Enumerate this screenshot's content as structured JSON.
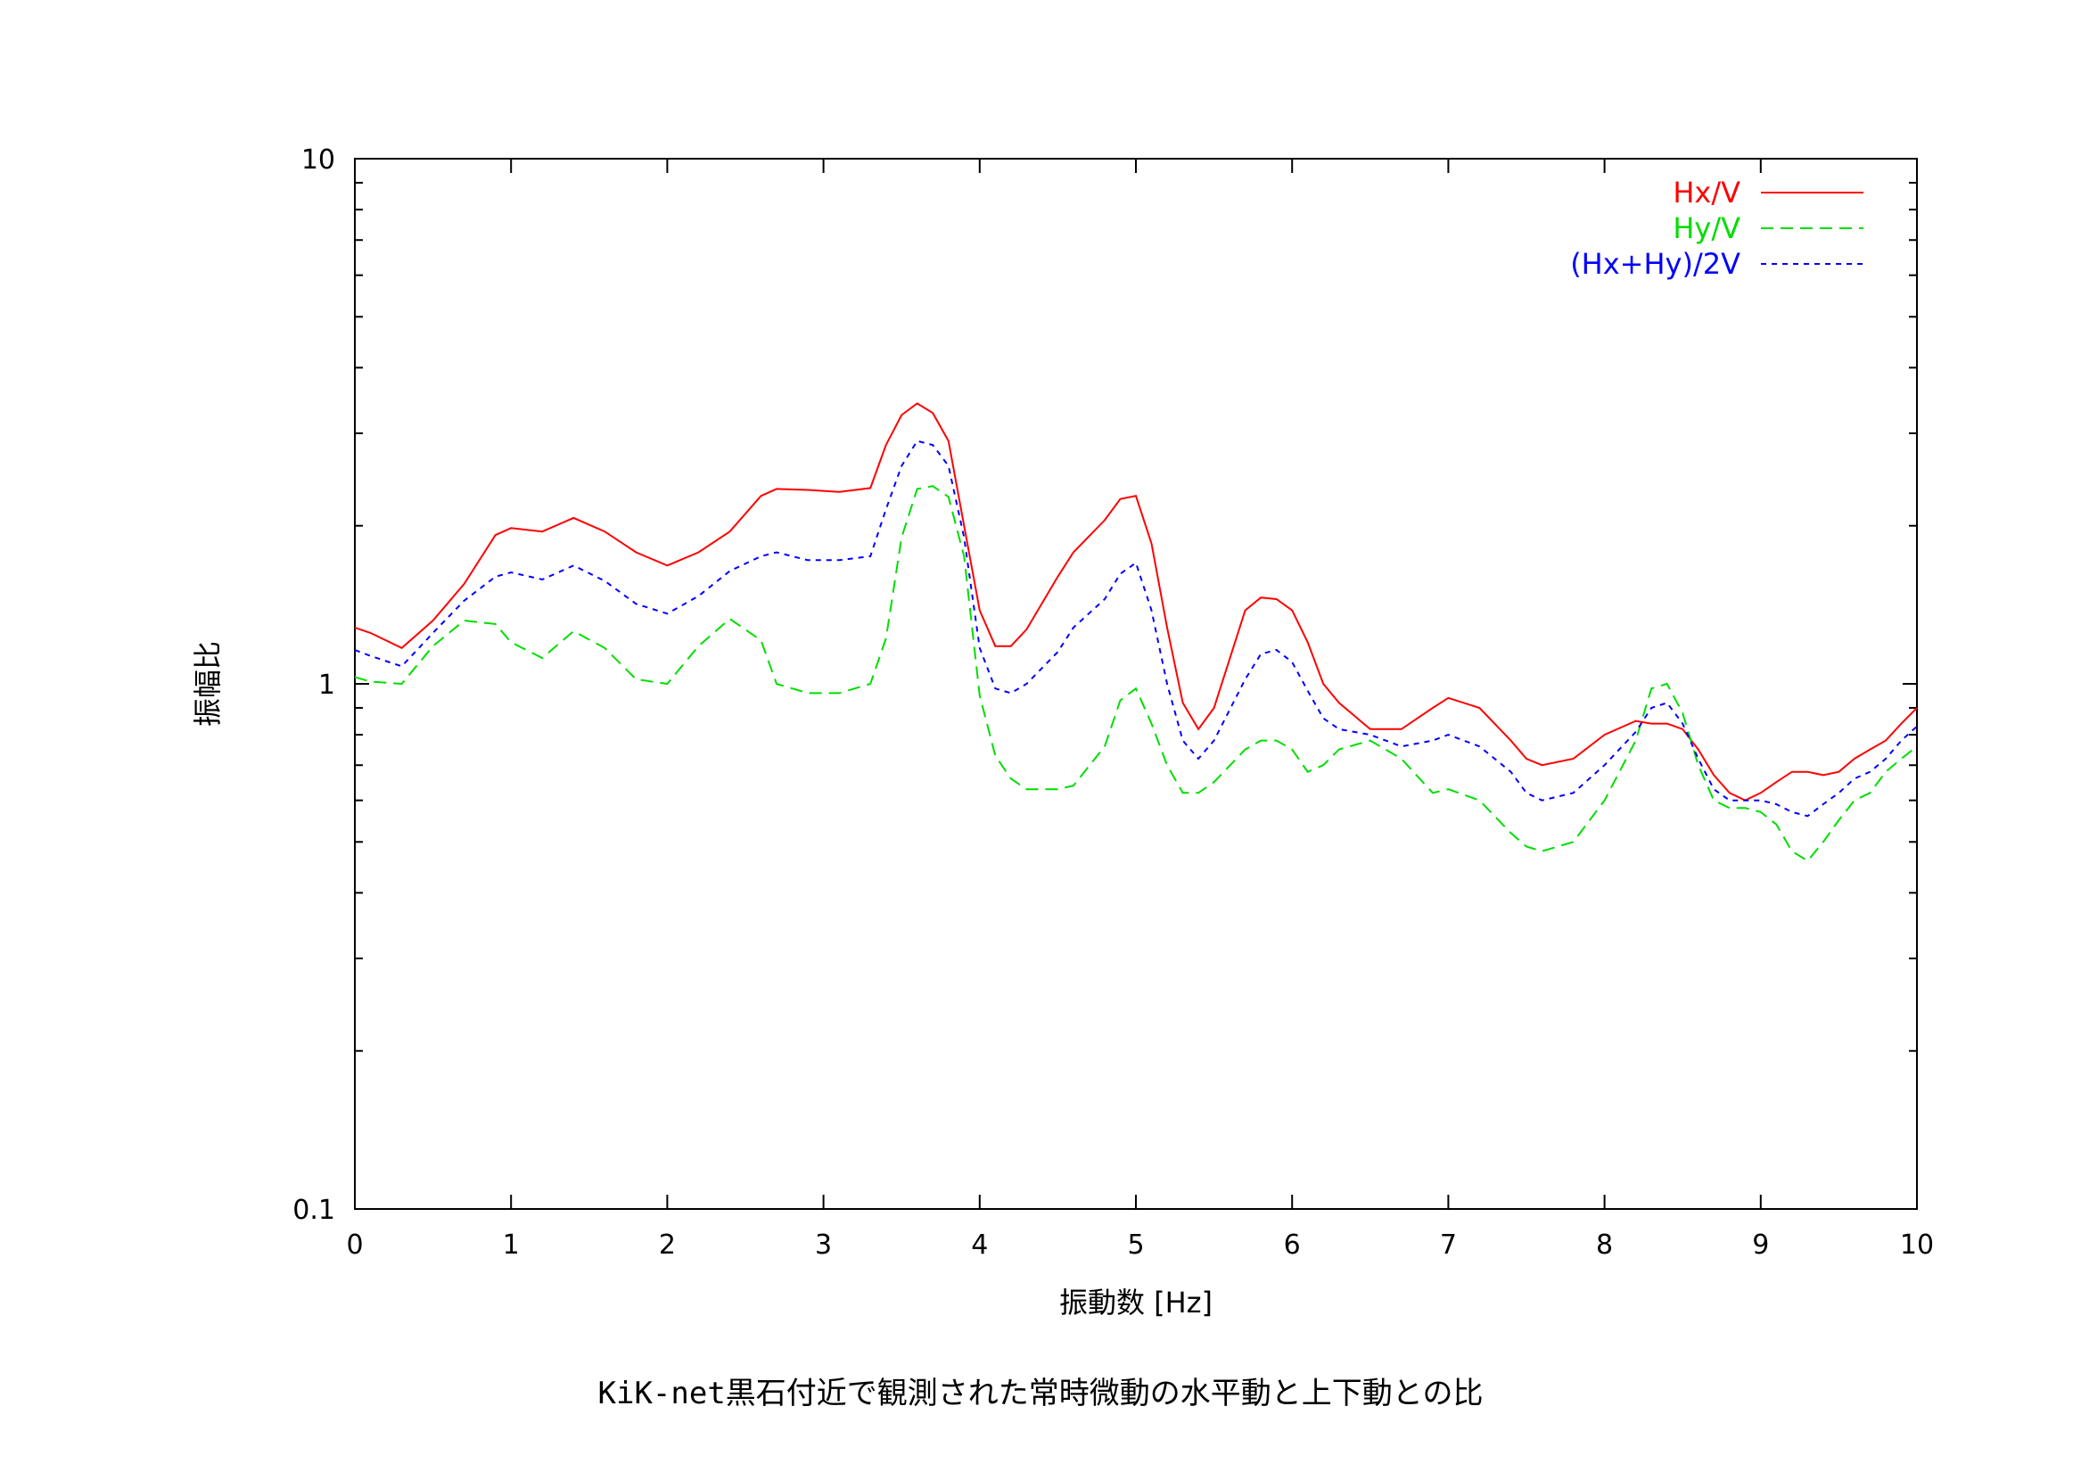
{
  "caption": "KiK-net黒石付近で観測された常時微動の水平動と上下動との比",
  "chart_data": {
    "type": "line",
    "xlabel": "振動数 [Hz]",
    "ylabel": "振幅比",
    "xlim": [
      0,
      10
    ],
    "ylim": [
      0.1,
      10
    ],
    "yscale": "log",
    "x_ticks": [
      0,
      1,
      2,
      3,
      4,
      5,
      6,
      7,
      8,
      9,
      10
    ],
    "x_tick_labels": [
      "0",
      "1",
      "2",
      "3",
      "4",
      "5",
      "6",
      "7",
      "8",
      "9",
      "10"
    ],
    "y_ticks": [
      0.1,
      1,
      10
    ],
    "y_tick_labels": [
      "0.1",
      "1",
      "10"
    ],
    "legend_position": "top-right",
    "x": [
      0,
      0.1,
      0.3,
      0.5,
      0.7,
      0.9,
      1.0,
      1.2,
      1.4,
      1.6,
      1.8,
      2.0,
      2.2,
      2.4,
      2.6,
      2.7,
      2.9,
      3.1,
      3.3,
      3.4,
      3.5,
      3.6,
      3.7,
      3.8,
      3.9,
      4.0,
      4.1,
      4.2,
      4.3,
      4.5,
      4.6,
      4.8,
      4.9,
      5.0,
      5.1,
      5.2,
      5.3,
      5.4,
      5.5,
      5.7,
      5.8,
      5.9,
      6.0,
      6.1,
      6.2,
      6.3,
      6.5,
      6.7,
      6.9,
      7.0,
      7.2,
      7.4,
      7.5,
      7.6,
      7.8,
      8.0,
      8.2,
      8.3,
      8.4,
      8.5,
      8.6,
      8.7,
      8.8,
      8.9,
      9.0,
      9.1,
      9.2,
      9.3,
      9.4,
      9.5,
      9.6,
      9.7,
      9.8,
      9.9,
      10.0
    ],
    "series": [
      {
        "name": "Hx/V",
        "color": "#ff0000",
        "dash": "solid",
        "values": [
          1.28,
          1.25,
          1.17,
          1.32,
          1.55,
          1.92,
          1.98,
          1.95,
          2.07,
          1.95,
          1.78,
          1.68,
          1.78,
          1.95,
          2.28,
          2.35,
          2.34,
          2.32,
          2.36,
          2.85,
          3.25,
          3.42,
          3.28,
          2.9,
          2.0,
          1.38,
          1.18,
          1.18,
          1.27,
          1.6,
          1.78,
          2.05,
          2.25,
          2.28,
          1.85,
          1.28,
          0.92,
          0.82,
          0.9,
          1.38,
          1.46,
          1.45,
          1.38,
          1.2,
          1.0,
          0.92,
          0.82,
          0.82,
          0.9,
          0.94,
          0.9,
          0.78,
          0.72,
          0.7,
          0.72,
          0.8,
          0.85,
          0.84,
          0.84,
          0.82,
          0.75,
          0.67,
          0.62,
          0.6,
          0.62,
          0.65,
          0.68,
          0.68,
          0.67,
          0.68,
          0.72,
          0.75,
          0.78,
          0.84,
          0.9
        ]
      },
      {
        "name": "Hy/V",
        "color": "#00dd00",
        "dash": "long",
        "values": [
          1.03,
          1.01,
          1.0,
          1.18,
          1.32,
          1.3,
          1.2,
          1.12,
          1.26,
          1.17,
          1.02,
          1.0,
          1.18,
          1.33,
          1.21,
          1.0,
          0.96,
          0.96,
          1.0,
          1.22,
          1.9,
          2.35,
          2.38,
          2.27,
          1.75,
          0.95,
          0.73,
          0.66,
          0.63,
          0.63,
          0.64,
          0.76,
          0.93,
          0.98,
          0.84,
          0.7,
          0.62,
          0.62,
          0.65,
          0.75,
          0.78,
          0.78,
          0.75,
          0.68,
          0.7,
          0.75,
          0.78,
          0.72,
          0.62,
          0.63,
          0.6,
          0.52,
          0.49,
          0.48,
          0.5,
          0.6,
          0.78,
          0.98,
          1.0,
          0.88,
          0.7,
          0.6,
          0.58,
          0.58,
          0.57,
          0.54,
          0.48,
          0.46,
          0.5,
          0.55,
          0.6,
          0.62,
          0.68,
          0.72,
          0.76
        ]
      },
      {
        "name": "(Hx+Hy)/2V",
        "color": "#0000ff",
        "dash": "short",
        "values": [
          1.16,
          1.13,
          1.08,
          1.25,
          1.44,
          1.6,
          1.63,
          1.58,
          1.68,
          1.57,
          1.42,
          1.36,
          1.47,
          1.64,
          1.75,
          1.78,
          1.72,
          1.72,
          1.75,
          2.15,
          2.6,
          2.9,
          2.85,
          2.6,
          1.9,
          1.17,
          0.98,
          0.96,
          1.0,
          1.15,
          1.28,
          1.45,
          1.62,
          1.7,
          1.38,
          1.0,
          0.78,
          0.72,
          0.78,
          1.02,
          1.14,
          1.16,
          1.1,
          0.97,
          0.86,
          0.82,
          0.8,
          0.76,
          0.78,
          0.8,
          0.76,
          0.68,
          0.62,
          0.6,
          0.62,
          0.7,
          0.81,
          0.9,
          0.92,
          0.84,
          0.72,
          0.63,
          0.6,
          0.6,
          0.6,
          0.59,
          0.57,
          0.56,
          0.59,
          0.62,
          0.66,
          0.68,
          0.72,
          0.78,
          0.83
        ]
      }
    ]
  }
}
